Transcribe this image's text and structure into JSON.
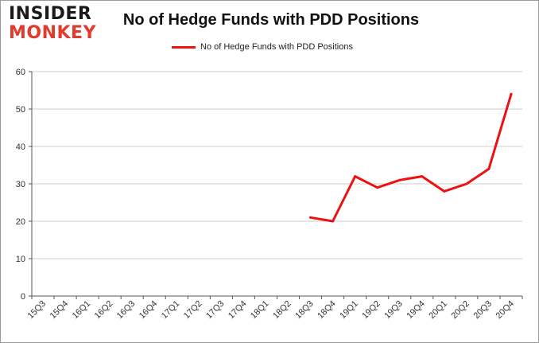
{
  "brand": {
    "logo_top": "INSIDER",
    "logo_bottom": "MONKEY"
  },
  "colors": {
    "line": "#ee1111",
    "grid": "#cccccc",
    "axis": "#555555"
  },
  "chart_data": {
    "type": "line",
    "title": "No of Hedge Funds with PDD Positions",
    "xlabel": "",
    "ylabel": "",
    "categories": [
      "15Q3",
      "15Q4",
      "16Q1",
      "16Q2",
      "16Q3",
      "16Q4",
      "17Q1",
      "17Q2",
      "17Q3",
      "17Q4",
      "18Q1",
      "18Q2",
      "18Q3",
      "18Q4",
      "19Q1",
      "19Q2",
      "19Q3",
      "19Q4",
      "20Q1",
      "20Q2",
      "20Q3",
      "20Q4"
    ],
    "series": [
      {
        "name": "No of Hedge Funds with PDD Positions",
        "values": [
          null,
          null,
          null,
          null,
          null,
          null,
          null,
          null,
          null,
          null,
          null,
          null,
          21,
          20,
          32,
          29,
          31,
          32,
          28,
          30,
          34,
          54
        ]
      }
    ],
    "ylim": [
      0,
      60
    ],
    "yticks": [
      0,
      10,
      20,
      30,
      40,
      50,
      60
    ],
    "grid": true,
    "legend": "top"
  }
}
